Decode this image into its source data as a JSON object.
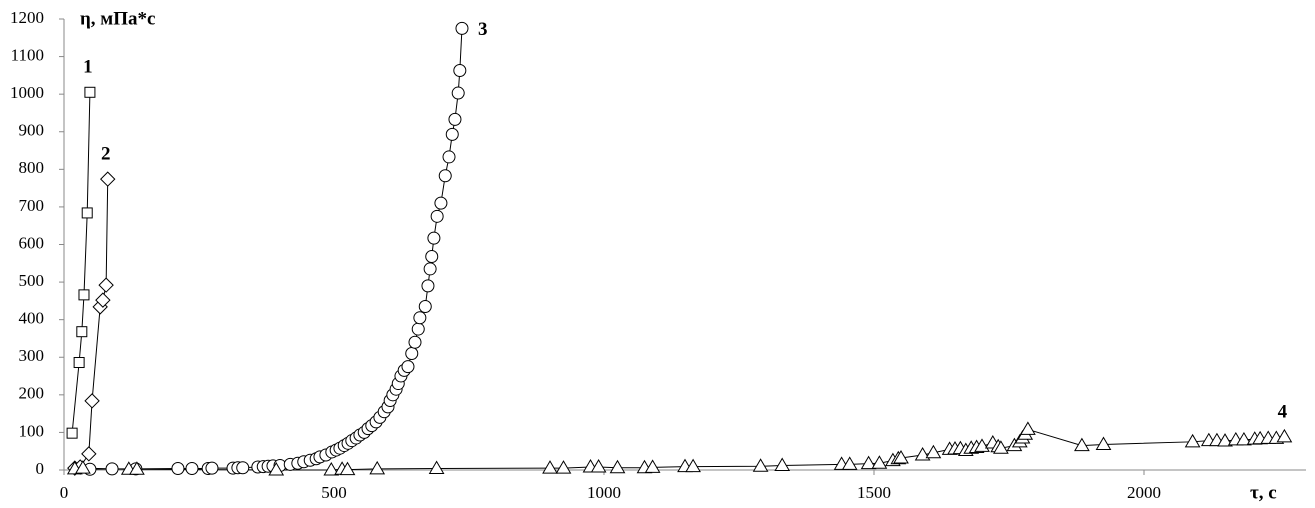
{
  "chart_data": {
    "type": "line",
    "y_label": "η, мПа*с",
    "x_label": "τ, с",
    "xlim": [
      0,
      2300
    ],
    "xticks": [
      0,
      500,
      1000,
      1500,
      2000
    ],
    "ylim": [
      0,
      1200
    ],
    "yticks": [
      0,
      100,
      200,
      300,
      400,
      500,
      600,
      700,
      800,
      900,
      1000,
      1100,
      1200
    ],
    "grid": false,
    "series": [
      {
        "name": "1",
        "color": "#000000",
        "marker": "square",
        "x": [
          15,
          28,
          33,
          37,
          43,
          48
        ],
        "values": [
          98,
          286,
          368,
          466,
          684,
          1005
        ]
      },
      {
        "name": "2",
        "color": "#000000",
        "marker": "diamond",
        "x": [
          20,
          30,
          46,
          52,
          67,
          72,
          78,
          81
        ],
        "values": [
          5,
          8,
          43,
          184,
          434,
          452,
          492,
          774
        ]
      },
      {
        "name": "3",
        "color": "#000000",
        "marker": "circle",
        "x": [
          48,
          89,
          133,
          211,
          237,
          267,
          274,
          313,
          322,
          331,
          359,
          369,
          378,
          387,
          400,
          419,
          433,
          444,
          456,
          467,
          474,
          485,
          496,
          504,
          511,
          519,
          526,
          533,
          541,
          548,
          556,
          563,
          570,
          578,
          585,
          593,
          600,
          604,
          609,
          615,
          619,
          624,
          630,
          637,
          644,
          650,
          656,
          659,
          669,
          674,
          678,
          681,
          685,
          691,
          698,
          706,
          713,
          719,
          724,
          730,
          733,
          737
        ],
        "values": [
          2,
          3,
          3,
          4,
          4,
          4,
          5,
          5,
          6,
          6,
          8,
          9,
          10,
          11,
          12,
          15,
          18,
          22,
          26,
          30,
          35,
          40,
          48,
          53,
          58,
          65,
          71,
          78,
          85,
          93,
          100,
          110,
          118,
          128,
          140,
          155,
          168,
          185,
          200,
          215,
          230,
          250,
          265,
          275,
          310,
          340,
          375,
          405,
          435,
          490,
          535,
          568,
          617,
          675,
          710,
          783,
          833,
          893,
          933,
          1003,
          1063,
          1175
        ]
      },
      {
        "name": "4",
        "color": "#000000",
        "marker": "triangle",
        "x": [
          20,
          35,
          120,
          135,
          393,
          495,
          515,
          525,
          580,
          690,
          900,
          925,
          975,
          990,
          1025,
          1075,
          1090,
          1150,
          1165,
          1290,
          1330,
          1440,
          1455,
          1490,
          1510,
          1535,
          1545,
          1550,
          1590,
          1610,
          1640,
          1650,
          1660,
          1670,
          1680,
          1690,
          1700,
          1720,
          1730,
          1735,
          1760,
          1770,
          1775,
          1780,
          1785,
          1885,
          1925,
          2090,
          2120,
          2135,
          2150,
          2170,
          2185,
          2205,
          2215,
          2230,
          2245,
          2260
        ],
        "values": [
          3,
          5,
          2,
          2,
          0,
          0,
          2,
          1,
          3,
          4,
          5,
          5,
          8,
          8,
          6,
          6,
          7,
          9,
          9,
          10,
          12,
          15,
          15,
          17,
          18,
          25,
          30,
          32,
          40,
          46,
          55,
          56,
          57,
          52,
          58,
          60,
          63,
          72,
          62,
          58,
          65,
          75,
          85,
          95,
          108,
          65,
          68,
          75,
          78,
          78,
          77,
          80,
          80,
          82,
          83,
          84,
          84,
          88
        ]
      }
    ]
  }
}
